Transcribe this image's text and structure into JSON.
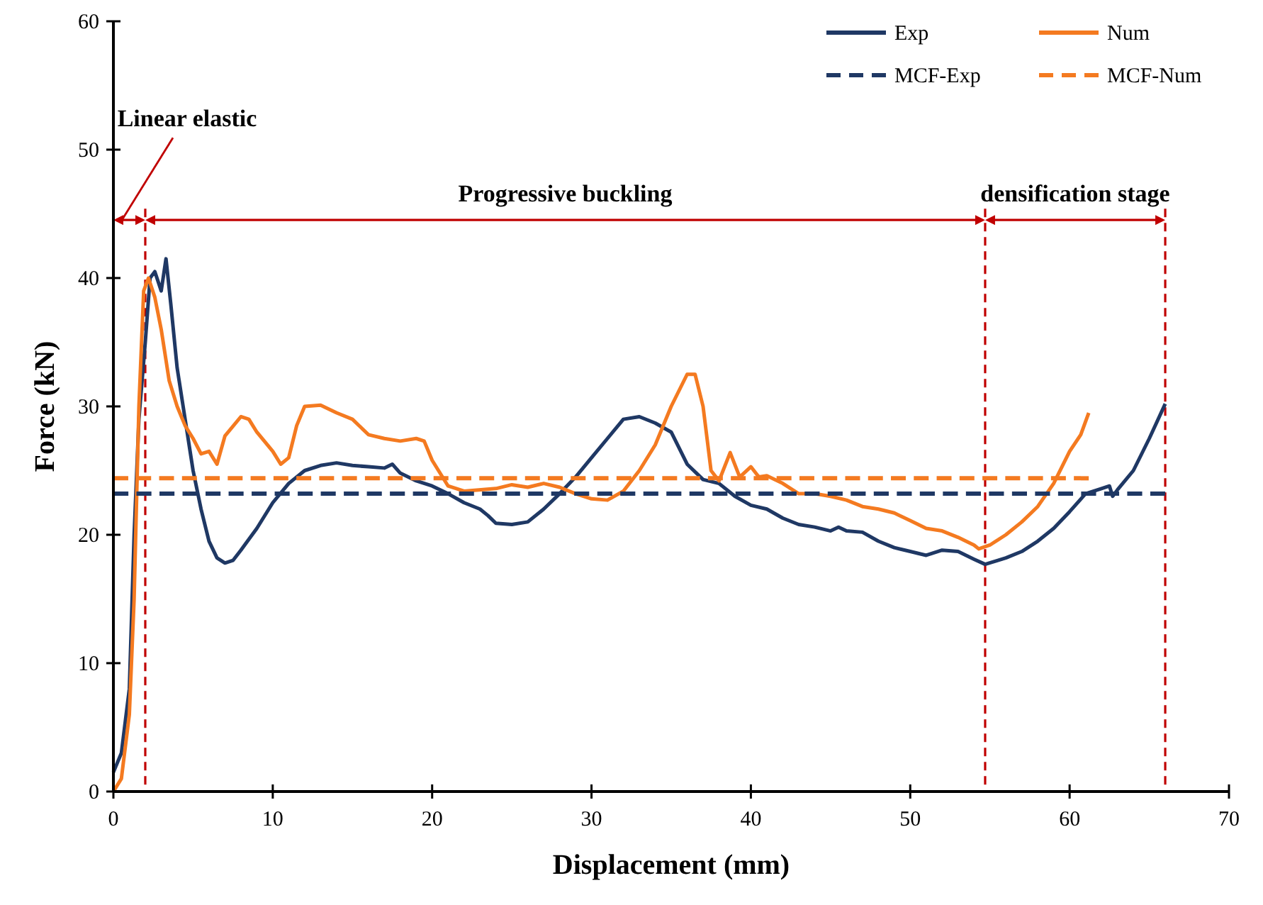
{
  "chart_data": {
    "type": "line",
    "xlabel": "Displacement (mm)",
    "ylabel": "Force (kN)",
    "xlim": [
      0,
      70
    ],
    "xticks": [
      0,
      10,
      20,
      30,
      40,
      50,
      60,
      70
    ],
    "ylim": [
      0,
      60
    ],
    "yticks": [
      0,
      10,
      20,
      30,
      40,
      50,
      60
    ],
    "legend": "top right",
    "grid": false,
    "series": [
      {
        "name": "Exp",
        "color": "#1f3864",
        "line_style": "solid",
        "x": [
          0,
          0.5,
          1,
          1.3,
          1.6,
          2,
          2.3,
          2.6,
          3,
          3.3,
          3.6,
          4,
          4.5,
          5,
          5.5,
          6,
          6.5,
          7,
          7.5,
          8,
          9,
          10,
          11,
          12,
          13,
          14,
          15,
          16,
          17,
          17.5,
          18,
          19,
          20,
          21,
          22,
          23,
          23.5,
          24,
          25,
          26,
          27,
          28,
          29,
          30,
          31,
          32,
          33,
          34,
          35,
          36,
          37,
          38,
          39,
          40,
          41,
          42,
          43,
          44,
          45,
          45.5,
          46,
          47,
          48,
          49,
          50,
          51,
          52,
          53,
          54,
          54.7,
          55.5,
          56,
          57,
          58,
          59,
          60,
          61,
          62,
          62.5,
          62.7,
          63,
          64,
          65,
          66
        ],
        "values": [
          1.5,
          3,
          8,
          20,
          29,
          35,
          40,
          40.5,
          39,
          41.5,
          38,
          33,
          29,
          25,
          22,
          19.5,
          18.2,
          17.8,
          18,
          18.8,
          20.5,
          22.5,
          24,
          25,
          25.4,
          25.6,
          25.4,
          25.3,
          25.2,
          25.5,
          24.8,
          24.2,
          23.8,
          23.2,
          22.5,
          22,
          21.5,
          20.9,
          20.8,
          21,
          22,
          23.2,
          24.5,
          26,
          27.5,
          29,
          29.2,
          28.7,
          28,
          25.5,
          24.3,
          24,
          23,
          22.3,
          22,
          21.3,
          20.8,
          20.6,
          20.3,
          20.6,
          20.3,
          20.2,
          19.5,
          19,
          18.7,
          18.4,
          18.8,
          18.7,
          18.1,
          17.7,
          18,
          18.2,
          18.7,
          19.5,
          20.5,
          21.8,
          23.2,
          23.6,
          23.8,
          23,
          23.5,
          25,
          27.5,
          30.2
        ]
      },
      {
        "name": "Num",
        "color": "#f47a20",
        "line_style": "solid",
        "x": [
          0,
          0.5,
          1,
          1.3,
          1.6,
          1.9,
          2.2,
          2.6,
          3,
          3.5,
          4,
          4.5,
          5,
          5.5,
          6,
          6.5,
          7,
          8,
          8.5,
          9,
          10,
          10.5,
          11,
          11.5,
          12,
          13,
          14,
          15,
          16,
          17,
          18,
          19,
          19.5,
          20,
          21,
          22,
          24,
          25,
          26,
          27,
          28,
          29,
          30,
          31,
          32,
          33,
          34,
          35,
          36,
          36.5,
          37,
          37.5,
          38,
          38.7,
          39.3,
          40,
          40.5,
          41,
          42,
          43,
          44,
          45,
          46,
          47,
          48,
          49,
          50,
          51,
          52,
          53,
          54,
          54.3,
          55,
          56,
          57,
          58,
          59,
          60,
          60.7,
          61.2
        ],
        "values": [
          0,
          1,
          6,
          15,
          30,
          39,
          40,
          38.5,
          36,
          32,
          30,
          28.5,
          27.5,
          26.3,
          26.5,
          25.5,
          27.7,
          29.2,
          29,
          28,
          26.5,
          25.5,
          26,
          28.5,
          30,
          30.1,
          29.5,
          29,
          27.8,
          27.5,
          27.3,
          27.5,
          27.3,
          25.8,
          23.8,
          23.4,
          23.6,
          23.9,
          23.7,
          24,
          23.7,
          23.2,
          22.8,
          22.7,
          23.4,
          25,
          27,
          30,
          32.5,
          32.5,
          30,
          25,
          24.2,
          26.4,
          24.5,
          25.3,
          24.5,
          24.6,
          24,
          23.2,
          23.2,
          23,
          22.7,
          22.2,
          22,
          21.7,
          21.1,
          20.5,
          20.3,
          19.8,
          19.2,
          18.9,
          19.2,
          20,
          21,
          22.2,
          24,
          26.5,
          27.8,
          29.5
        ]
      },
      {
        "name": "MCF-Exp",
        "color": "#1f3864",
        "line_style": "dashed",
        "x": [
          0,
          66
        ],
        "values": [
          23.2,
          23.2
        ]
      },
      {
        "name": "MCF-Num",
        "color": "#f47a20",
        "line_style": "dashed",
        "x": [
          0,
          61.2
        ],
        "values": [
          24.4,
          24.4
        ]
      }
    ],
    "ref_lines": [
      {
        "axis": "x",
        "value": 2,
        "color": "#c00000",
        "line_style": "dashed"
      },
      {
        "axis": "x",
        "value": 54.7,
        "color": "#c00000",
        "line_style": "dashed"
      },
      {
        "axis": "x",
        "value": 66,
        "color": "#c00000",
        "line_style": "dashed"
      }
    ],
    "annotations": [
      "Linear elastic",
      "Progressive buckling",
      "densification stage"
    ]
  }
}
